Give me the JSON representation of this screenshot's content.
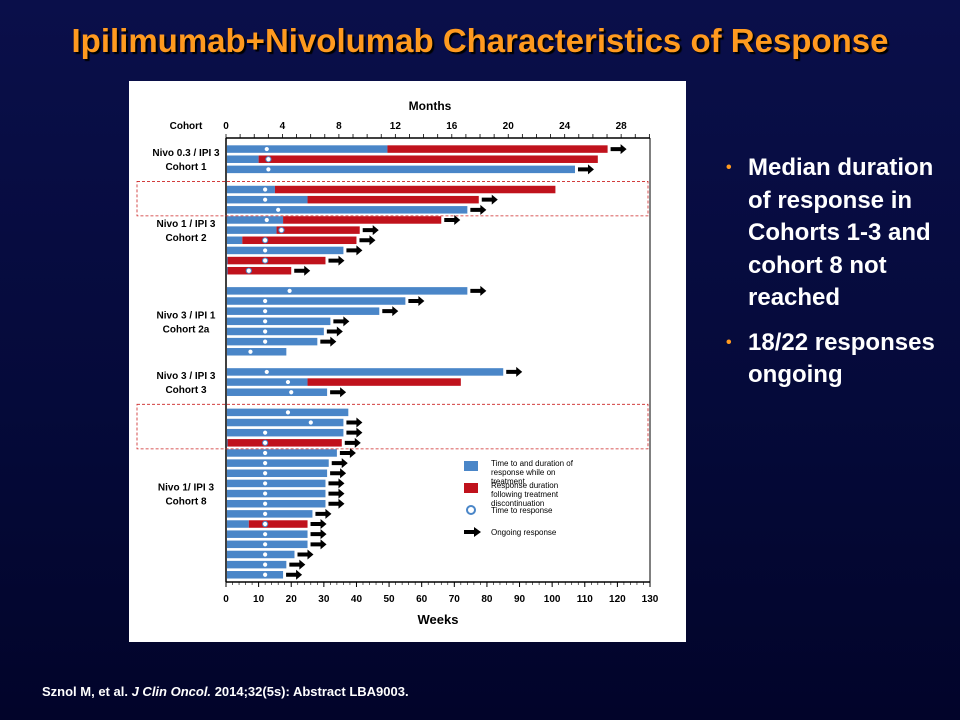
{
  "slide": {
    "title": "Ipilimumab+Nivolumab Characteristics of Response",
    "bullets": [
      "Median duration of response in Cohorts 1-3 and cohort 8 not reached",
      "18/22 responses ongoing"
    ],
    "citation": {
      "authors": "Sznol M, et al.",
      "journal": "J Clin Oncol.",
      "rest": "2014;32(5s): Abstract LBA9003."
    }
  },
  "colors": {
    "title": "#ff9a1f",
    "on_treatment": "#4a86c8",
    "after_discontinuation": "#c0121c",
    "highlight_box": "#cc2222",
    "bullet": "#ff9a1f"
  },
  "chart_data": {
    "type": "bar",
    "orientation": "horizontal",
    "stacked": true,
    "x_bottom": {
      "label": "Weeks",
      "range": [
        0,
        130
      ],
      "ticks": [
        0,
        10,
        20,
        30,
        40,
        50,
        60,
        70,
        80,
        90,
        100,
        110,
        120,
        130
      ]
    },
    "x_top": {
      "label": "Months",
      "range": [
        0,
        30
      ],
      "ticks": [
        0,
        4,
        8,
        12,
        16,
        20,
        24,
        28
      ]
    },
    "row_header": "Cohort",
    "legend": {
      "placement": "lower-right",
      "entries": [
        {
          "symbol": "blue-bar",
          "label": "Time to and duration of response while on treatment"
        },
        {
          "symbol": "red-bar",
          "label": "Response duration following treatment discontinuation"
        },
        {
          "symbol": "circle",
          "label": "Time to response"
        },
        {
          "symbol": "arrow",
          "label": "Ongoing response"
        }
      ]
    },
    "cohorts": [
      {
        "label": "Nivo 0.3 / IPI 3",
        "sublabel": "Cohort 1",
        "rows": [
          {
            "blue": 49.5,
            "red": 117,
            "ttr": 12.5,
            "ongoing": true
          },
          {
            "blue": 10,
            "red": 114,
            "ttr": 13,
            "ongoing": false
          },
          {
            "blue": 107,
            "red": null,
            "ttr": 13,
            "ongoing": true
          }
        ]
      },
      {
        "label": "Nivo 1 / IPI 3",
        "sublabel": "Cohort 2",
        "rows": [
          {
            "blue": 15,
            "red": 101,
            "ttr": 12,
            "ongoing": false
          },
          {
            "blue": 25,
            "red": 77.5,
            "ttr": 12,
            "ongoing": true
          },
          {
            "blue": 74,
            "red": null,
            "ttr": 16,
            "ongoing": true
          },
          {
            "blue": 17.5,
            "red": 66,
            "ttr": 12.5,
            "ongoing": true
          },
          {
            "blue": 15.5,
            "red": 41,
            "ttr": 17,
            "ongoing": true
          },
          {
            "blue": 5,
            "red": 40,
            "ttr": 12,
            "ongoing": true
          },
          {
            "blue": 36,
            "red": null,
            "ttr": 12,
            "ongoing": true
          },
          {
            "blue": 0.5,
            "red": 30.5,
            "ttr": 12,
            "ongoing": true
          },
          {
            "blue": 0.5,
            "red": 20,
            "ttr": 7,
            "ongoing": true
          }
        ]
      },
      {
        "label": "Nivo 3 / IPI 1",
        "sublabel": "Cohort 2a",
        "rows": [
          {
            "blue": 74,
            "red": null,
            "ttr": 19.5,
            "ongoing": true
          },
          {
            "blue": 55,
            "red": null,
            "ttr": 12,
            "ongoing": true
          },
          {
            "blue": 47,
            "red": null,
            "ttr": 12,
            "ongoing": true
          },
          {
            "blue": 32,
            "red": null,
            "ttr": 12,
            "ongoing": true
          },
          {
            "blue": 30,
            "red": null,
            "ttr": 12,
            "ongoing": true
          },
          {
            "blue": 28,
            "red": null,
            "ttr": 12,
            "ongoing": true
          },
          {
            "blue": 18.5,
            "red": null,
            "ttr": 7.5,
            "ongoing": false
          }
        ]
      },
      {
        "label": "Nivo 3 / IPI 3",
        "sublabel": "Cohort 3",
        "rows": [
          {
            "blue": 85,
            "red": null,
            "ttr": 12.5,
            "ongoing": true
          },
          {
            "blue": 25,
            "red": 72,
            "ttr": 19,
            "ongoing": false
          },
          {
            "blue": 31,
            "red": null,
            "ttr": 20,
            "ongoing": true
          }
        ]
      },
      {
        "label": "Nivo 1/ IPI 3",
        "sublabel": "Cohort 8",
        "rows": [
          {
            "blue": 37.5,
            "red": null,
            "ttr": 19,
            "ongoing": false
          },
          {
            "blue": 36,
            "red": null,
            "ttr": 26,
            "ongoing": true
          },
          {
            "blue": 36,
            "red": null,
            "ttr": 12,
            "ongoing": true
          },
          {
            "blue": 0.5,
            "red": 35.5,
            "ttr": 12,
            "ongoing": true
          },
          {
            "blue": 34,
            "red": null,
            "ttr": 12,
            "ongoing": true
          },
          {
            "blue": 31.5,
            "red": null,
            "ttr": 12,
            "ongoing": true
          },
          {
            "blue": 31,
            "red": null,
            "ttr": 12,
            "ongoing": true
          },
          {
            "blue": 30.5,
            "red": null,
            "ttr": 12,
            "ongoing": true
          },
          {
            "blue": 30.5,
            "red": null,
            "ttr": 12,
            "ongoing": true
          },
          {
            "blue": 30.5,
            "red": null,
            "ttr": 12,
            "ongoing": true
          },
          {
            "blue": 26.5,
            "red": null,
            "ttr": 12,
            "ongoing": true
          },
          {
            "blue": 7,
            "red": 25,
            "ttr": 12,
            "ongoing": true
          },
          {
            "blue": 25,
            "red": null,
            "ttr": 12,
            "ongoing": true
          },
          {
            "blue": 25,
            "red": null,
            "ttr": 12,
            "ongoing": true
          },
          {
            "blue": 21,
            "red": null,
            "ttr": 12,
            "ongoing": true
          },
          {
            "blue": 18.5,
            "red": null,
            "ttr": 12,
            "ongoing": true
          },
          {
            "blue": 17.5,
            "red": null,
            "ttr": 12,
            "ongoing": true
          }
        ]
      }
    ],
    "highlighted_rows": [
      {
        "cohort": 1,
        "rows": [
          0,
          1,
          2
        ]
      },
      {
        "cohort": 4,
        "rows": [
          0,
          1,
          2,
          3
        ]
      }
    ]
  }
}
